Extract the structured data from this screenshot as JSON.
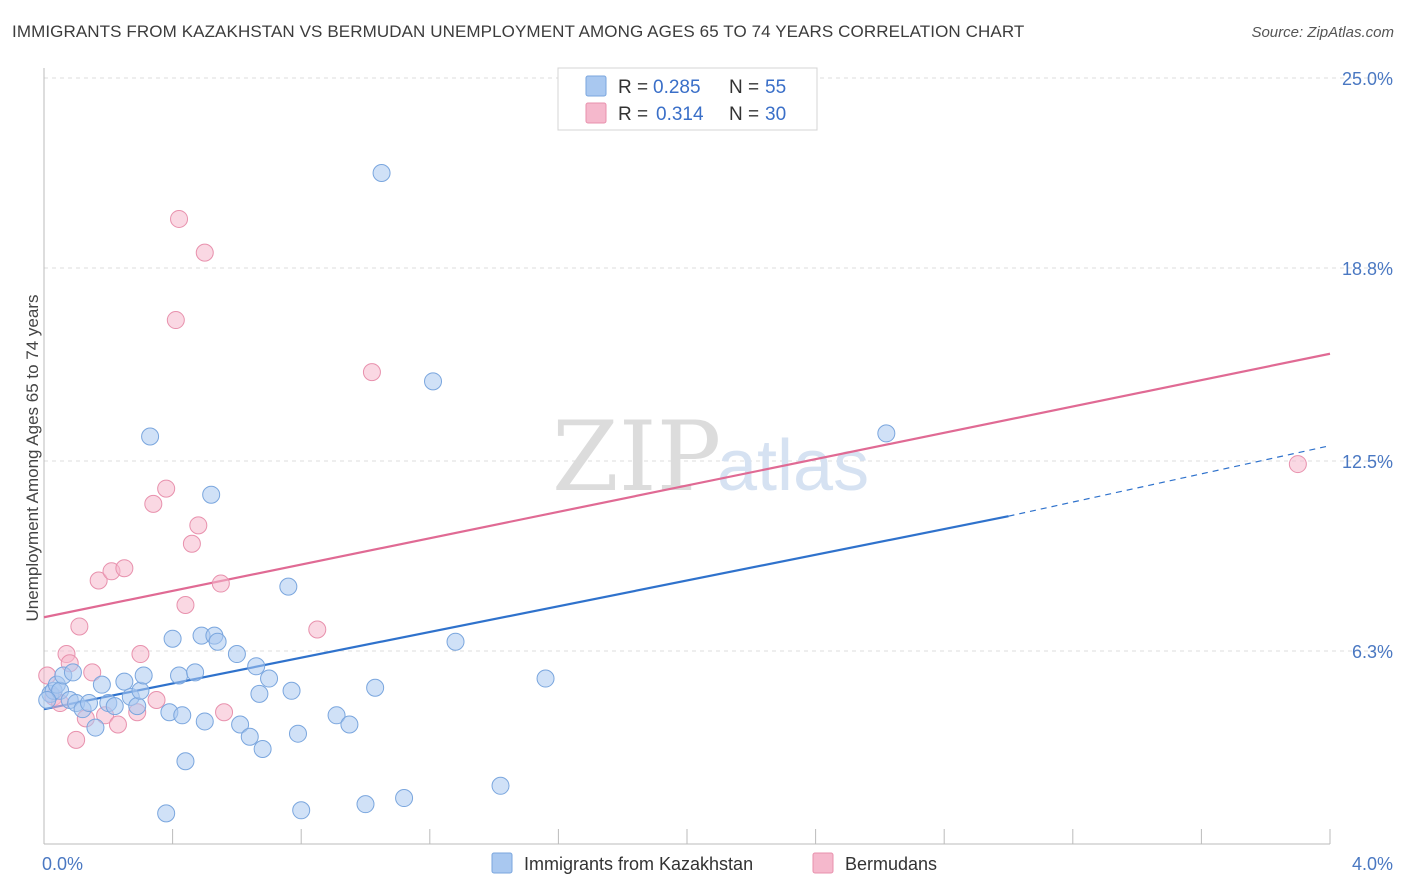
{
  "title": "IMMIGRANTS FROM KAZAKHSTAN VS BERMUDAN UNEMPLOYMENT AMONG AGES 65 TO 74 YEARS CORRELATION CHART",
  "source": "Source: ZipAtlas.com",
  "watermark": {
    "zip": "ZIP",
    "atlas": "atlas"
  },
  "colors": {
    "blue_fill": "#a9c8f0",
    "blue_stroke": "#7aa6de",
    "blue_line": "#2f72cc",
    "pink_fill": "#f5b8cc",
    "pink_stroke": "#e891ad",
    "pink_line": "#e06a94",
    "grid": "#dddddd",
    "tick_label": "#4a78c2"
  },
  "chart_data": {
    "type": "scatter",
    "title": "IMMIGRANTS FROM KAZAKHSTAN VS BERMUDAN UNEMPLOYMENT AMONG AGES 65 TO 74 YEARS CORRELATION CHART",
    "xlabel": "",
    "ylabel": "Unemployment Among Ages 65 to 74 years",
    "xlim": [
      0,
      4.0
    ],
    "ylim": [
      0,
      25.0
    ],
    "x_tick_labels": [
      "0.0%",
      "4.0%"
    ],
    "y_ticks": [
      6.3,
      12.5,
      18.8,
      25.0
    ],
    "y_tick_labels": [
      "6.3%",
      "12.5%",
      "18.8%",
      "25.0%"
    ],
    "legend": {
      "r_label": "R =",
      "n_label": "N =",
      "entries": [
        {
          "r": "0.285",
          "n": "55"
        },
        {
          "r": "0.314",
          "n": "30"
        }
      ]
    },
    "series": [
      {
        "name": "Immigrants from Kazakhstan",
        "trend": {
          "x0": 0.0,
          "y0": 4.4,
          "x1": 3.0,
          "y1": 10.7,
          "dash_x1": 4.0,
          "dash_y1": 13.0
        },
        "points": [
          [
            0.02,
            4.9
          ],
          [
            0.03,
            5.0
          ],
          [
            0.04,
            5.2
          ],
          [
            0.05,
            5.0
          ],
          [
            0.06,
            5.5
          ],
          [
            0.08,
            4.7
          ],
          [
            0.09,
            5.6
          ],
          [
            0.1,
            4.6
          ],
          [
            0.12,
            4.4
          ],
          [
            0.14,
            4.6
          ],
          [
            0.16,
            3.8
          ],
          [
            0.18,
            5.2
          ],
          [
            0.2,
            4.6
          ],
          [
            0.22,
            4.5
          ],
          [
            0.25,
            5.3
          ],
          [
            0.27,
            4.8
          ],
          [
            0.29,
            4.5
          ],
          [
            0.3,
            5.0
          ],
          [
            0.31,
            5.5
          ],
          [
            0.33,
            13.3
          ],
          [
            0.38,
            1.0
          ],
          [
            0.39,
            4.3
          ],
          [
            0.4,
            6.7
          ],
          [
            0.42,
            5.5
          ],
          [
            0.43,
            4.2
          ],
          [
            0.44,
            2.7
          ],
          [
            0.47,
            5.6
          ],
          [
            0.49,
            6.8
          ],
          [
            0.5,
            4.0
          ],
          [
            0.52,
            11.4
          ],
          [
            0.53,
            6.8
          ],
          [
            0.54,
            6.6
          ],
          [
            0.6,
            6.2
          ],
          [
            0.61,
            3.9
          ],
          [
            0.64,
            3.5
          ],
          [
            0.66,
            5.8
          ],
          [
            0.67,
            4.9
          ],
          [
            0.68,
            3.1
          ],
          [
            0.7,
            5.4
          ],
          [
            0.76,
            8.4
          ],
          [
            0.77,
            5.0
          ],
          [
            0.79,
            3.6
          ],
          [
            0.8,
            1.1
          ],
          [
            0.91,
            4.2
          ],
          [
            0.95,
            3.9
          ],
          [
            1.0,
            1.3
          ],
          [
            1.03,
            5.1
          ],
          [
            1.05,
            21.9
          ],
          [
            1.12,
            1.5
          ],
          [
            1.21,
            15.1
          ],
          [
            1.28,
            6.6
          ],
          [
            1.42,
            1.9
          ],
          [
            1.56,
            5.4
          ],
          [
            2.62,
            13.4
          ],
          [
            0.01,
            4.7
          ]
        ]
      },
      {
        "name": "Bermudans",
        "trend": {
          "x0": 0.0,
          "y0": 7.4,
          "x1": 4.0,
          "y1": 16.0
        },
        "points": [
          [
            0.01,
            5.5
          ],
          [
            0.03,
            4.8
          ],
          [
            0.05,
            4.6
          ],
          [
            0.07,
            6.2
          ],
          [
            0.08,
            5.9
          ],
          [
            0.1,
            3.4
          ],
          [
            0.11,
            7.1
          ],
          [
            0.13,
            4.1
          ],
          [
            0.15,
            5.6
          ],
          [
            0.17,
            8.6
          ],
          [
            0.19,
            4.2
          ],
          [
            0.21,
            8.9
          ],
          [
            0.23,
            3.9
          ],
          [
            0.25,
            9.0
          ],
          [
            0.29,
            4.3
          ],
          [
            0.3,
            6.2
          ],
          [
            0.34,
            11.1
          ],
          [
            0.35,
            4.7
          ],
          [
            0.38,
            11.6
          ],
          [
            0.41,
            17.1
          ],
          [
            0.42,
            20.4
          ],
          [
            0.44,
            7.8
          ],
          [
            0.46,
            9.8
          ],
          [
            0.48,
            10.4
          ],
          [
            0.5,
            19.3
          ],
          [
            0.55,
            8.5
          ],
          [
            0.56,
            4.3
          ],
          [
            0.85,
            7.0
          ],
          [
            1.02,
            15.4
          ],
          [
            3.9,
            12.4
          ]
        ]
      }
    ]
  },
  "bottom_legend": [
    "Immigrants from Kazakhstan",
    "Bermudans"
  ]
}
